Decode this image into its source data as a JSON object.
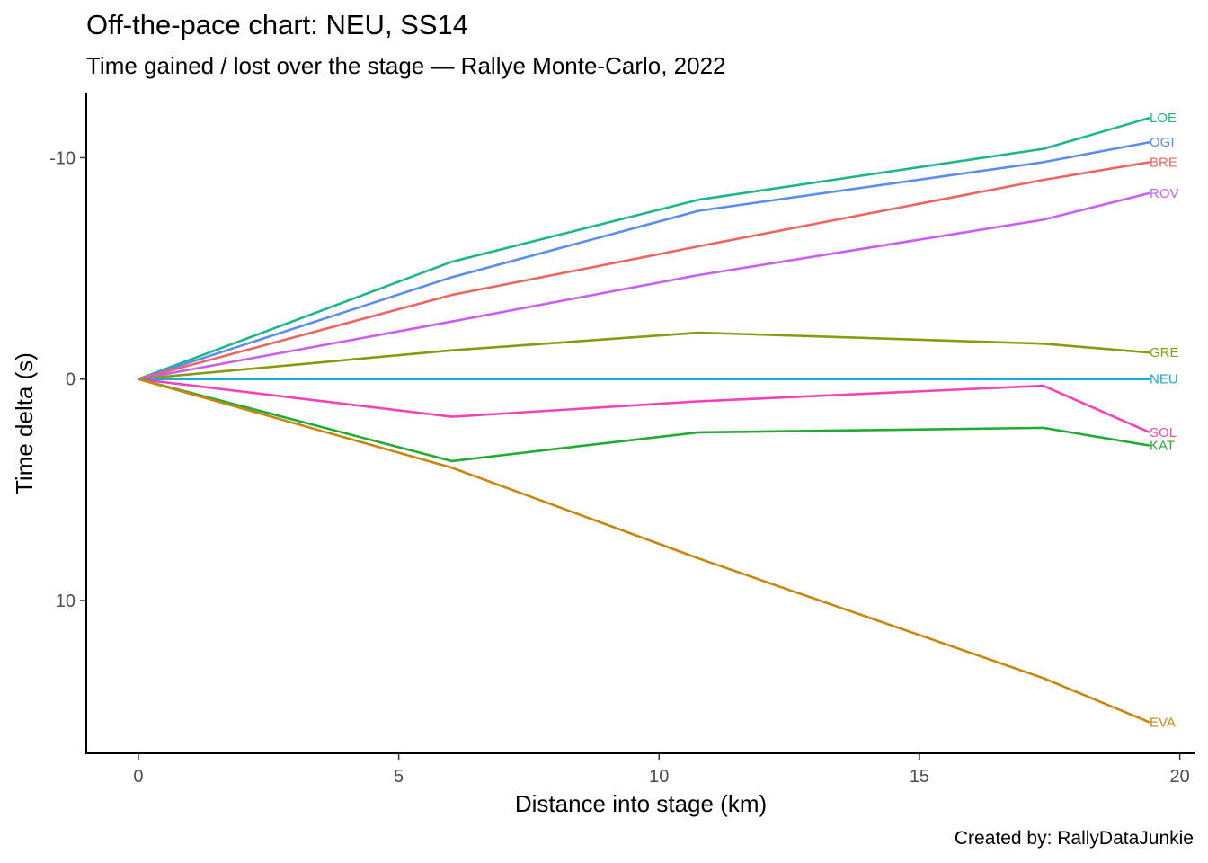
{
  "title": "Off-the-pace chart: NEU, SS14",
  "subtitle": "Time gained / lost over the stage — Rallye Monte-Carlo, 2022",
  "caption": "Created by: RallyDataJunkie",
  "chart_data": {
    "type": "line",
    "xlabel": "Distance into stage (km)",
    "ylabel": "Time delta (s)",
    "xlim": [
      -1,
      20.3
    ],
    "ylim": [
      -12.9,
      16.9
    ],
    "y_reversed": true,
    "x_ticks": [
      0,
      5,
      10,
      15,
      20
    ],
    "y_ticks": [
      -10,
      0,
      10
    ],
    "x_tick_labels": [
      "0",
      "5",
      "10",
      "15",
      "20"
    ],
    "y_tick_labels": [
      "-10",
      "0",
      "10"
    ],
    "grid": false,
    "legend": "direct labels at line ends",
    "x": [
      0,
      6.02,
      10.76,
      17.38,
      19.42
    ],
    "series": [
      {
        "name": "LOE",
        "color": "#1DB68B",
        "values": [
          0,
          -5.3,
          -8.1,
          -10.4,
          -11.8
        ]
      },
      {
        "name": "OGI",
        "color": "#5B8CF0",
        "values": [
          0,
          -4.6,
          -7.6,
          -9.8,
          -10.7
        ]
      },
      {
        "name": "BRE",
        "color": "#EE6460",
        "values": [
          0,
          -3.8,
          -6.0,
          -9.0,
          -9.8
        ]
      },
      {
        "name": "ROV",
        "color": "#CC5CF2",
        "values": [
          0,
          -2.6,
          -4.7,
          -7.2,
          -8.4
        ]
      },
      {
        "name": "GRE",
        "color": "#8A9A10",
        "values": [
          0,
          -1.3,
          -2.1,
          -1.6,
          -1.2
        ]
      },
      {
        "name": "NEU",
        "color": "#16ABD8",
        "values": [
          0,
          0,
          0,
          0,
          0
        ]
      },
      {
        "name": "SOL",
        "color": "#F244B8",
        "values": [
          0,
          1.7,
          1.0,
          0.3,
          2.4
        ]
      },
      {
        "name": "KAT",
        "color": "#22AA33",
        "values": [
          0,
          3.7,
          2.4,
          2.2,
          3.0
        ]
      },
      {
        "name": "EVA",
        "color": "#C9860F",
        "values": [
          0,
          4.0,
          8.1,
          13.5,
          15.5
        ]
      }
    ]
  }
}
